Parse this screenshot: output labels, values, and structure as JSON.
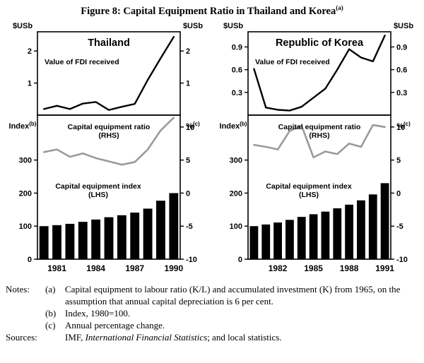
{
  "figure": {
    "title": "Figure 8: Capital Equipment Ratio in Thailand and Korea",
    "title_superscript": "(a)"
  },
  "colors": {
    "background": "#ffffff",
    "bar": "#000000",
    "fdi_line": "#000000",
    "ratio_line": "#9a9a9a",
    "panel_border": "#000000"
  },
  "chart_data": [
    {
      "id": "thailand",
      "title": "Thailand",
      "years": [
        1980,
        1981,
        1982,
        1983,
        1984,
        1985,
        1986,
        1987,
        1988,
        1989,
        1990
      ],
      "year_ticks": [
        1981,
        1984,
        1987,
        1990
      ],
      "top_panel": {
        "type": "line",
        "series_label": "Value of FDI received",
        "unit_left": {
          "text": "$USb"
        },
        "unit_right": {
          "text": "$USb"
        },
        "ylim": [
          0,
          2.6
        ],
        "yticks": [
          1,
          2
        ],
        "values": [
          0.19,
          0.29,
          0.19,
          0.36,
          0.41,
          0.16,
          0.26,
          0.35,
          1.1,
          1.78,
          2.44
        ]
      },
      "bottom_panel": {
        "type": "bar+line",
        "unit_left": {
          "text": "Index",
          "sup": "(b)"
        },
        "unit_right": {
          "text": "%",
          "sup": "(c)"
        },
        "left_ylim": [
          0,
          436
        ],
        "left_yticks": [
          0,
          100,
          200,
          300
        ],
        "right_ylim": [
          -10,
          11.8
        ],
        "right_yticks": [
          -10,
          -5,
          0,
          5,
          10
        ],
        "bars": {
          "name": "Capital equipment index (LHS)",
          "label_lines": [
            "Capital equipment index",
            "(LHS)"
          ],
          "axis": "left",
          "values": [
            100,
            103,
            107,
            113,
            120,
            127,
            133,
            141,
            153,
            177,
            200
          ]
        },
        "line": {
          "name": "Capital equipment ratio (RHS)",
          "label_lines": [
            "Capital equipment ratio",
            "(RHS)"
          ],
          "axis": "right",
          "color": "#9a9a9a",
          "values": [
            6.2,
            6.6,
            5.5,
            6.0,
            5.3,
            4.8,
            4.3,
            4.7,
            6.6,
            9.5,
            11.4
          ]
        }
      }
    },
    {
      "id": "korea",
      "title": "Republic of Korea",
      "years": [
        1980,
        1981,
        1982,
        1983,
        1984,
        1985,
        1986,
        1987,
        1988,
        1989,
        1990,
        1991
      ],
      "year_ticks": [
        1982,
        1985,
        1988,
        1991
      ],
      "top_panel": {
        "type": "line",
        "series_label": "Value of FDI received",
        "unit_left": {
          "text": "$USb"
        },
        "unit_right": {
          "text": "$USb"
        },
        "ylim": [
          0,
          1.1
        ],
        "yticks": [
          0.3,
          0.6,
          0.9
        ],
        "values": [
          0.61,
          0.1,
          0.07,
          0.06,
          0.11,
          0.23,
          0.35,
          0.6,
          0.87,
          0.76,
          0.71,
          1.05
        ]
      },
      "bottom_panel": {
        "type": "bar+line",
        "unit_left": {
          "text": "Index",
          "sup": "(b)"
        },
        "unit_right": {
          "text": "%",
          "sup": "(c)"
        },
        "left_ylim": [
          0,
          436
        ],
        "left_yticks": [
          0,
          100,
          200,
          300
        ],
        "right_ylim": [
          -10,
          11.8
        ],
        "right_yticks": [
          -10,
          -5,
          0,
          5,
          10
        ],
        "bars": {
          "name": "Capital equipment index (LHS)",
          "label_lines": [
            "Capital equipment index",
            "(LHS)"
          ],
          "axis": "left",
          "values": [
            100,
            105,
            111,
            119,
            128,
            136,
            144,
            154,
            165,
            178,
            196,
            230
          ]
        },
        "line": {
          "name": "Capital equipment ratio (RHS)",
          "label_lines": [
            "Capital equipment ratio",
            "(RHS)"
          ],
          "axis": "right",
          "color": "#9a9a9a",
          "values": [
            7.3,
            7.0,
            6.6,
            9.4,
            10.2,
            5.4,
            6.3,
            5.9,
            7.5,
            7.0,
            10.3,
            10.0
          ]
        }
      }
    }
  ],
  "notes": {
    "notes_label": "Notes:",
    "items": [
      {
        "marker": "(a)",
        "text": "Capital equipment to labour ratio (K/L) and accumulated investment (K) from 1965, on the assumption that annual capital depreciation is 6 per cent."
      },
      {
        "marker": "(b)",
        "text": "Index, 1980=100."
      },
      {
        "marker": "(c)",
        "text": "Annual percentage change."
      }
    ],
    "sources_label": "Sources:",
    "sources_prefix": "IMF, ",
    "sources_italic": "International Financial Statistics",
    "sources_suffix": "; and local statistics."
  }
}
